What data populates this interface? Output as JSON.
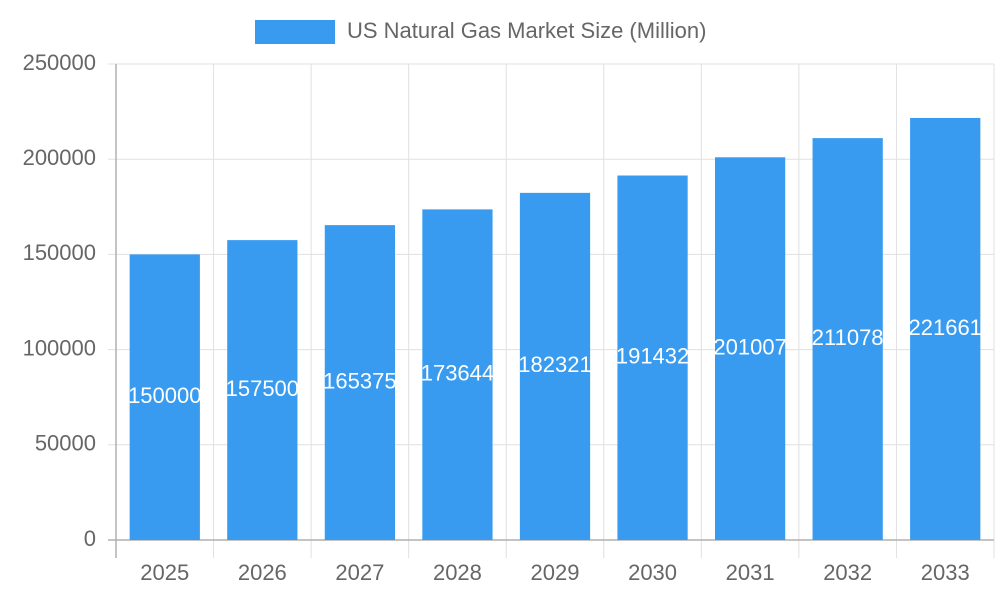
{
  "chart_data": {
    "type": "bar",
    "categories": [
      "2025",
      "2026",
      "2027",
      "2028",
      "2029",
      "2030",
      "2031",
      "2032",
      "2033"
    ],
    "series": [
      {
        "name": "US Natural Gas Market Size (Million)",
        "color": "#389bf0",
        "values": [
          150000,
          157500,
          165375,
          173644,
          182321,
          191432,
          201007,
          211078,
          221661
        ]
      }
    ],
    "ylim": [
      0,
      250000
    ],
    "yticks": [
      0,
      50000,
      100000,
      150000,
      200000,
      250000
    ],
    "grid": true,
    "data_labels": true,
    "legend": "top"
  }
}
